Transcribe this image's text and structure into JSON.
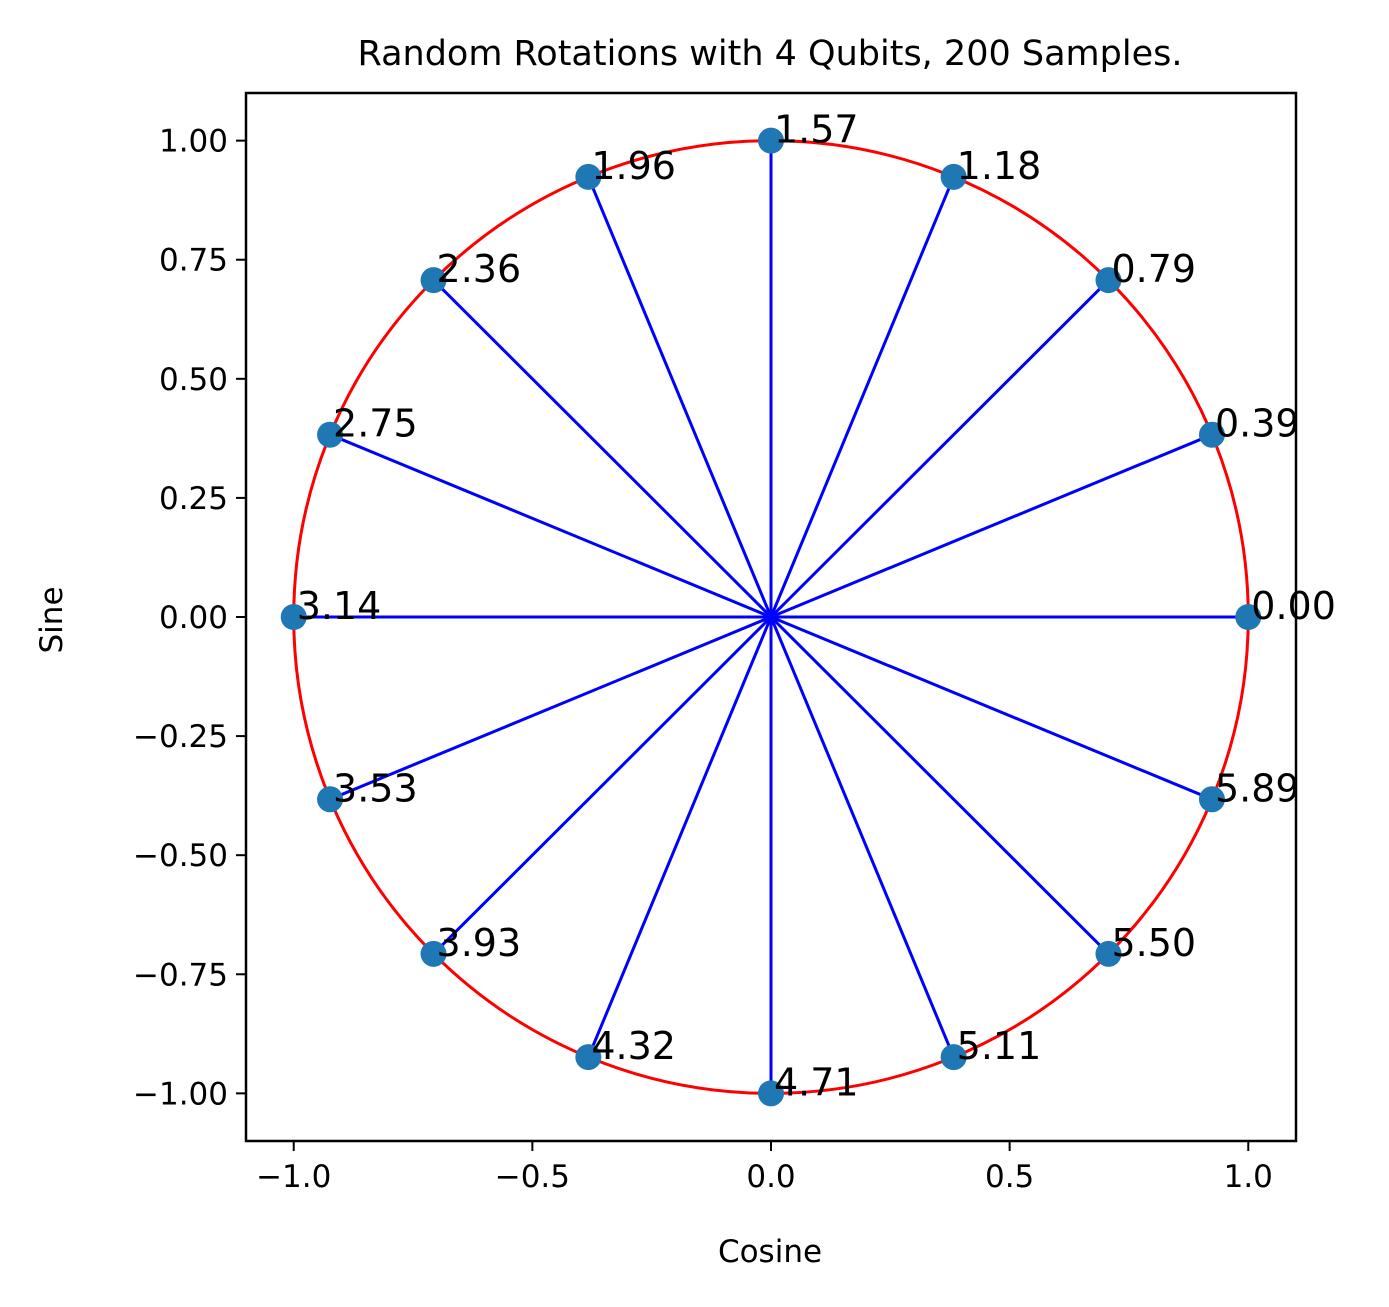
{
  "chart_data": {
    "type": "scatter",
    "title": "Random Rotations with 4 Qubits, 200 Samples.",
    "xlabel": "Cosine",
    "ylabel": "Sine",
    "xlim": [
      -1.1,
      1.1
    ],
    "ylim": [
      -1.1,
      1.1
    ],
    "grid": false,
    "legend": false,
    "xticks": [
      -1.0,
      -0.5,
      0.0,
      0.5,
      1.0
    ],
    "xtick_labels": [
      "−1.0",
      "−0.5",
      "0.0",
      "0.5",
      "1.0"
    ],
    "yticks": [
      1.0,
      0.75,
      0.5,
      0.25,
      0.0,
      -0.25,
      -0.5,
      -0.75,
      -1.0
    ],
    "ytick_labels": [
      "1.00",
      "0.75",
      "0.50",
      "0.25",
      "0.00",
      "−0.25",
      "−0.50",
      "−0.75",
      "−1.00"
    ],
    "circle": {
      "center": [
        0,
        0
      ],
      "radius": 1.0,
      "color": "#ff0000"
    },
    "colors": {
      "points": "#1f77b4",
      "spokes": "#0000ff",
      "circle": "#ff0000"
    },
    "points": [
      {
        "label": "0.00",
        "x": 1.0,
        "y": 0.0
      },
      {
        "label": "0.39",
        "x": 0.9239,
        "y": 0.3827
      },
      {
        "label": "0.79",
        "x": 0.7071,
        "y": 0.7071
      },
      {
        "label": "1.18",
        "x": 0.3827,
        "y": 0.9239
      },
      {
        "label": "1.57",
        "x": 0.0,
        "y": 1.0
      },
      {
        "label": "1.96",
        "x": -0.3827,
        "y": 0.9239
      },
      {
        "label": "2.36",
        "x": -0.7071,
        "y": 0.7071
      },
      {
        "label": "2.75",
        "x": -0.9239,
        "y": 0.3827
      },
      {
        "label": "3.14",
        "x": -1.0,
        "y": 0.0
      },
      {
        "label": "3.53",
        "x": -0.9239,
        "y": -0.3827
      },
      {
        "label": "3.93",
        "x": -0.7071,
        "y": -0.7071
      },
      {
        "label": "4.32",
        "x": -0.3827,
        "y": -0.9239
      },
      {
        "label": "4.71",
        "x": 0.0,
        "y": -1.0
      },
      {
        "label": "5.11",
        "x": 0.3827,
        "y": -0.9239
      },
      {
        "label": "5.50",
        "x": 0.7071,
        "y": -0.7071
      },
      {
        "label": "5.89",
        "x": 0.9239,
        "y": -0.3827
      }
    ]
  }
}
